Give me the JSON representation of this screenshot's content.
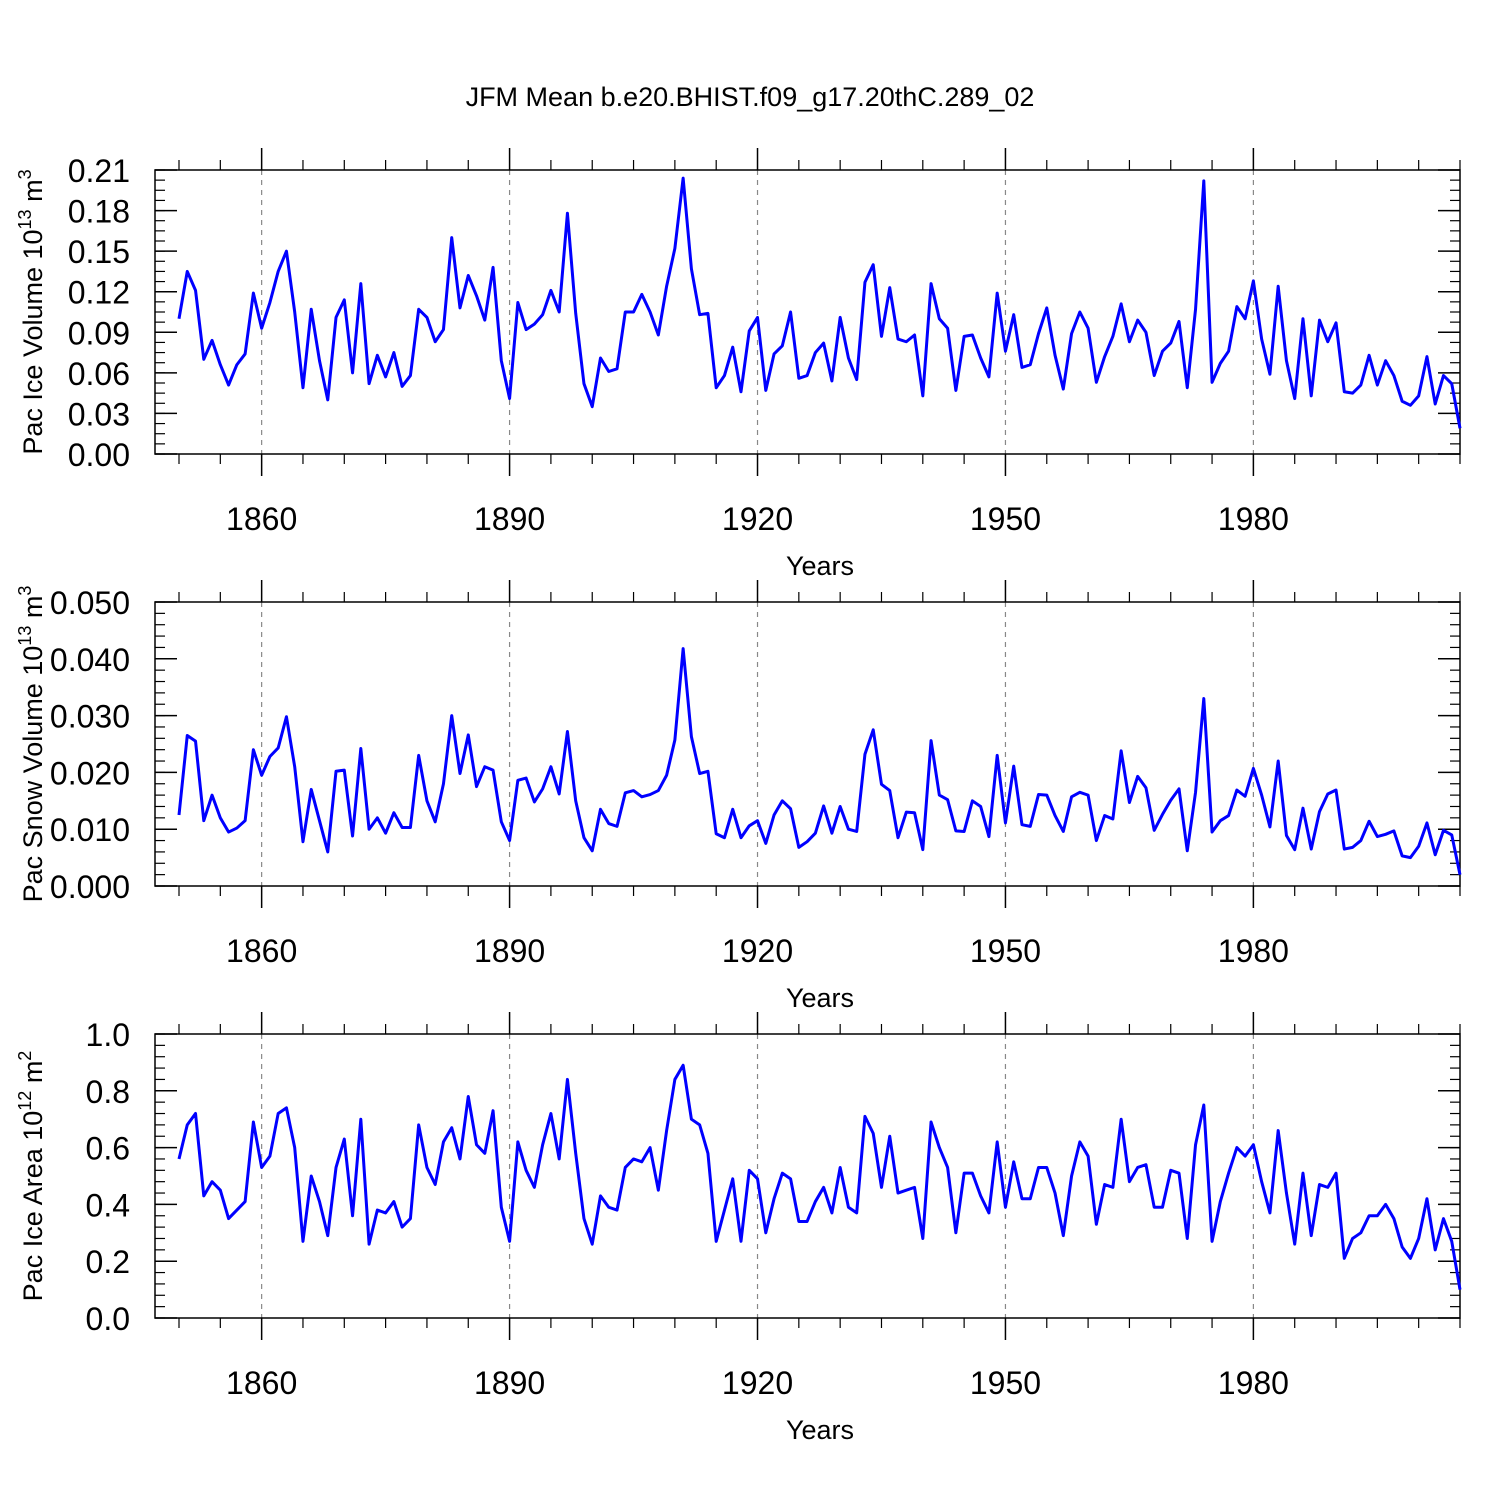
{
  "title": "JFM Mean b.e20.BHIST.f09_g17.20thC.289_02",
  "colors": {
    "line": "#0000ff",
    "axis": "#000000",
    "grid": "#888888"
  },
  "chart_data": [
    {
      "type": "line",
      "ylabel": "Pac Ice Volume 10",
      "ylabel_sup1": "13",
      "ylabel_mid": " m",
      "ylabel_sup2": "3",
      "xlabel": "Years",
      "xlim": [
        1850,
        2005
      ],
      "ylim": [
        0,
        0.21
      ],
      "yticks": [
        0,
        0.03,
        0.06,
        0.09,
        0.12,
        0.15,
        0.18,
        0.21
      ],
      "yticklabels": [
        "0.00",
        "0.03",
        "0.06",
        "0.09",
        "0.12",
        "0.15",
        "0.18",
        "0.21"
      ],
      "yminor": 0.0075,
      "xticks": [
        1860,
        1890,
        1920,
        1950,
        1980
      ],
      "xticklabels": [
        "1860",
        "1890",
        "1920",
        "1950",
        "1980"
      ],
      "x_start": 1850,
      "values": [
        0.1,
        0.135,
        0.121,
        0.07,
        0.084,
        0.066,
        0.051,
        0.066,
        0.074,
        0.119,
        0.093,
        0.112,
        0.135,
        0.15,
        0.105,
        0.049,
        0.107,
        0.069,
        0.04,
        0.101,
        0.114,
        0.06,
        0.126,
        0.052,
        0.073,
        0.057,
        0.075,
        0.05,
        0.058,
        0.107,
        0.101,
        0.083,
        0.092,
        0.16,
        0.108,
        0.132,
        0.117,
        0.099,
        0.138,
        0.069,
        0.041,
        0.112,
        0.092,
        0.096,
        0.103,
        0.121,
        0.105,
        0.178,
        0.104,
        0.052,
        0.035,
        0.071,
        0.061,
        0.063,
        0.105,
        0.105,
        0.118,
        0.105,
        0.088,
        0.124,
        0.152,
        0.204,
        0.137,
        0.103,
        0.104,
        0.049,
        0.058,
        0.079,
        0.046,
        0.091,
        0.101,
        0.047,
        0.074,
        0.08,
        0.105,
        0.056,
        0.058,
        0.075,
        0.082,
        0.054,
        0.101,
        0.071,
        0.055,
        0.127,
        0.14,
        0.087,
        0.123,
        0.085,
        0.083,
        0.088,
        0.043,
        0.126,
        0.1,
        0.093,
        0.047,
        0.087,
        0.088,
        0.071,
        0.057,
        0.119,
        0.076,
        0.103,
        0.064,
        0.066,
        0.089,
        0.108,
        0.073,
        0.048,
        0.089,
        0.105,
        0.093,
        0.053,
        0.072,
        0.087,
        0.111,
        0.083,
        0.099,
        0.09,
        0.058,
        0.076,
        0.082,
        0.098,
        0.049,
        0.107,
        0.202,
        0.053,
        0.067,
        0.076,
        0.109,
        0.1,
        0.128,
        0.085,
        0.059,
        0.124,
        0.069,
        0.041,
        0.1,
        0.043,
        0.099,
        0.083,
        0.097,
        0.046,
        0.045,
        0.051,
        0.073,
        0.051,
        0.069,
        0.058,
        0.039,
        0.036,
        0.043,
        0.072,
        0.037,
        0.058,
        0.052,
        0.019
      ]
    },
    {
      "type": "line",
      "ylabel": "Pac Snow Volume 10",
      "ylabel_sup1": "13",
      "ylabel_mid": " m",
      "ylabel_sup2": "3",
      "xlabel": "Years",
      "xlim": [
        1850,
        2005
      ],
      "ylim": [
        0,
        0.05
      ],
      "yticks": [
        0,
        0.01,
        0.02,
        0.03,
        0.04,
        0.05
      ],
      "yticklabels": [
        "0.000",
        "0.010",
        "0.020",
        "0.030",
        "0.040",
        "0.050"
      ],
      "yminor": 0.002,
      "xticks": [
        1860,
        1890,
        1920,
        1950,
        1980
      ],
      "xticklabels": [
        "1860",
        "1890",
        "1920",
        "1950",
        "1980"
      ],
      "x_start": 1850,
      "values": [
        0.0125,
        0.0265,
        0.0255,
        0.0115,
        0.016,
        0.012,
        0.0095,
        0.0102,
        0.0115,
        0.024,
        0.0195,
        0.0228,
        0.0243,
        0.0298,
        0.021,
        0.0078,
        0.017,
        0.0115,
        0.006,
        0.0202,
        0.0204,
        0.0088,
        0.0242,
        0.01,
        0.012,
        0.0093,
        0.0129,
        0.0103,
        0.0103,
        0.023,
        0.015,
        0.0113,
        0.018,
        0.03,
        0.0198,
        0.0266,
        0.0175,
        0.021,
        0.0204,
        0.0113,
        0.008,
        0.0186,
        0.019,
        0.0148,
        0.0171,
        0.021,
        0.0162,
        0.0272,
        0.015,
        0.0085,
        0.0062,
        0.0135,
        0.011,
        0.0105,
        0.0164,
        0.0168,
        0.0157,
        0.0161,
        0.0168,
        0.0195,
        0.0257,
        0.0418,
        0.0263,
        0.0198,
        0.0202,
        0.0092,
        0.0085,
        0.0135,
        0.0085,
        0.0106,
        0.0115,
        0.0075,
        0.0125,
        0.015,
        0.0136,
        0.0068,
        0.0078,
        0.0093,
        0.0141,
        0.0093,
        0.014,
        0.01,
        0.0096,
        0.0232,
        0.0275,
        0.0179,
        0.0168,
        0.0085,
        0.013,
        0.0129,
        0.0064,
        0.0256,
        0.016,
        0.0152,
        0.0097,
        0.0096,
        0.015,
        0.014,
        0.0087,
        0.023,
        0.0111,
        0.0211,
        0.0108,
        0.0105,
        0.0161,
        0.016,
        0.0124,
        0.0096,
        0.0157,
        0.0165,
        0.016,
        0.008,
        0.0124,
        0.0118,
        0.0238,
        0.0147,
        0.0193,
        0.0173,
        0.0098,
        0.0126,
        0.0151,
        0.0171,
        0.0062,
        0.0165,
        0.033,
        0.0095,
        0.0115,
        0.0124,
        0.0169,
        0.0158,
        0.0207,
        0.016,
        0.0104,
        0.022,
        0.0089,
        0.0064,
        0.0137,
        0.0065,
        0.0131,
        0.0162,
        0.0169,
        0.0065,
        0.0068,
        0.008,
        0.0114,
        0.0087,
        0.0091,
        0.0097,
        0.0053,
        0.005,
        0.007,
        0.0111,
        0.0055,
        0.0098,
        0.009,
        0.002
      ]
    },
    {
      "type": "line",
      "ylabel": "Pac Ice Area 10",
      "ylabel_sup1": "12",
      "ylabel_mid": " m",
      "ylabel_sup2": "2",
      "xlabel": "Years",
      "xlim": [
        1850,
        2005
      ],
      "ylim": [
        0,
        1.0
      ],
      "yticks": [
        0,
        0.2,
        0.4,
        0.6,
        0.8,
        1.0
      ],
      "yticklabels": [
        "0.0",
        "0.2",
        "0.4",
        "0.6",
        "0.8",
        "1.0"
      ],
      "yminor": 0.04,
      "xticks": [
        1860,
        1890,
        1920,
        1950,
        1980
      ],
      "xticklabels": [
        "1860",
        "1890",
        "1920",
        "1950",
        "1980"
      ],
      "x_start": 1850,
      "values": [
        0.56,
        0.68,
        0.72,
        0.43,
        0.48,
        0.45,
        0.35,
        0.38,
        0.41,
        0.69,
        0.53,
        0.57,
        0.72,
        0.74,
        0.6,
        0.27,
        0.5,
        0.41,
        0.29,
        0.53,
        0.63,
        0.36,
        0.7,
        0.26,
        0.38,
        0.37,
        0.41,
        0.32,
        0.35,
        0.68,
        0.53,
        0.47,
        0.62,
        0.67,
        0.56,
        0.78,
        0.61,
        0.58,
        0.73,
        0.39,
        0.27,
        0.62,
        0.52,
        0.46,
        0.61,
        0.72,
        0.56,
        0.84,
        0.58,
        0.35,
        0.26,
        0.43,
        0.39,
        0.38,
        0.53,
        0.56,
        0.55,
        0.6,
        0.45,
        0.66,
        0.84,
        0.89,
        0.7,
        0.68,
        0.58,
        0.27,
        0.38,
        0.49,
        0.27,
        0.52,
        0.49,
        0.3,
        0.42,
        0.51,
        0.49,
        0.34,
        0.34,
        0.41,
        0.46,
        0.37,
        0.53,
        0.39,
        0.37,
        0.71,
        0.65,
        0.46,
        0.64,
        0.44,
        0.45,
        0.46,
        0.28,
        0.69,
        0.6,
        0.53,
        0.3,
        0.51,
        0.51,
        0.43,
        0.37,
        0.62,
        0.39,
        0.55,
        0.42,
        0.42,
        0.53,
        0.53,
        0.44,
        0.29,
        0.5,
        0.62,
        0.57,
        0.33,
        0.47,
        0.46,
        0.7,
        0.48,
        0.53,
        0.54,
        0.39,
        0.39,
        0.52,
        0.51,
        0.28,
        0.61,
        0.75,
        0.27,
        0.41,
        0.51,
        0.6,
        0.57,
        0.61,
        0.48,
        0.37,
        0.66,
        0.44,
        0.26,
        0.51,
        0.29,
        0.47,
        0.46,
        0.51,
        0.21,
        0.28,
        0.3,
        0.36,
        0.36,
        0.4,
        0.35,
        0.25,
        0.21,
        0.28,
        0.42,
        0.24,
        0.35,
        0.27,
        0.1
      ]
    }
  ]
}
